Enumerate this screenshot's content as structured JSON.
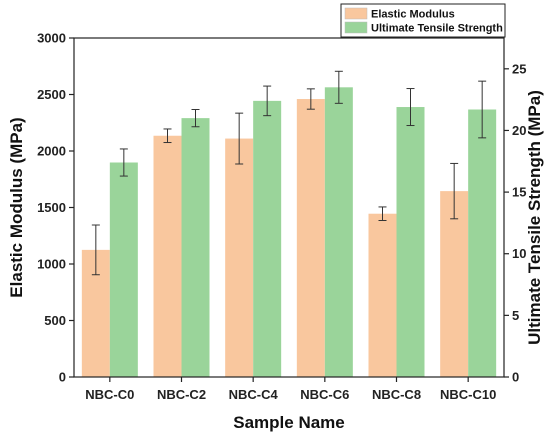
{
  "chart_data": {
    "type": "bar",
    "xlabel": "Sample Name",
    "ylabel_left": "Elastic Modulus (MPa)",
    "ylabel_right": "Ultimate Tensile Strength (MPa)",
    "categories": [
      "NBC-C0",
      "NBC-C2",
      "NBC-C4",
      "NBC-C6",
      "NBC-C8",
      "NBC-C10"
    ],
    "ylim_left": [
      0,
      3000
    ],
    "yticks_left": [
      0,
      500,
      1000,
      1500,
      2000,
      2500,
      3000
    ],
    "ylim_right": [
      0,
      27.5
    ],
    "yticks_right": [
      0,
      5,
      10,
      15,
      20,
      25
    ],
    "legend_position": "top-right",
    "series": [
      {
        "name": "Elastic Modulus",
        "axis": "left",
        "color": "#f9c79e",
        "values": [
          1125,
          2135,
          2110,
          2460,
          1445,
          1645
        ],
        "errors": [
          220,
          60,
          225,
          90,
          60,
          245
        ]
      },
      {
        "name": "Ultimate Tensile Strength",
        "axis": "right",
        "color": "#9ad49a",
        "values": [
          17.4,
          21.0,
          22.4,
          23.5,
          21.9,
          21.7
        ],
        "errors": [
          1.1,
          0.7,
          1.2,
          1.3,
          1.5,
          2.3
        ]
      }
    ]
  }
}
